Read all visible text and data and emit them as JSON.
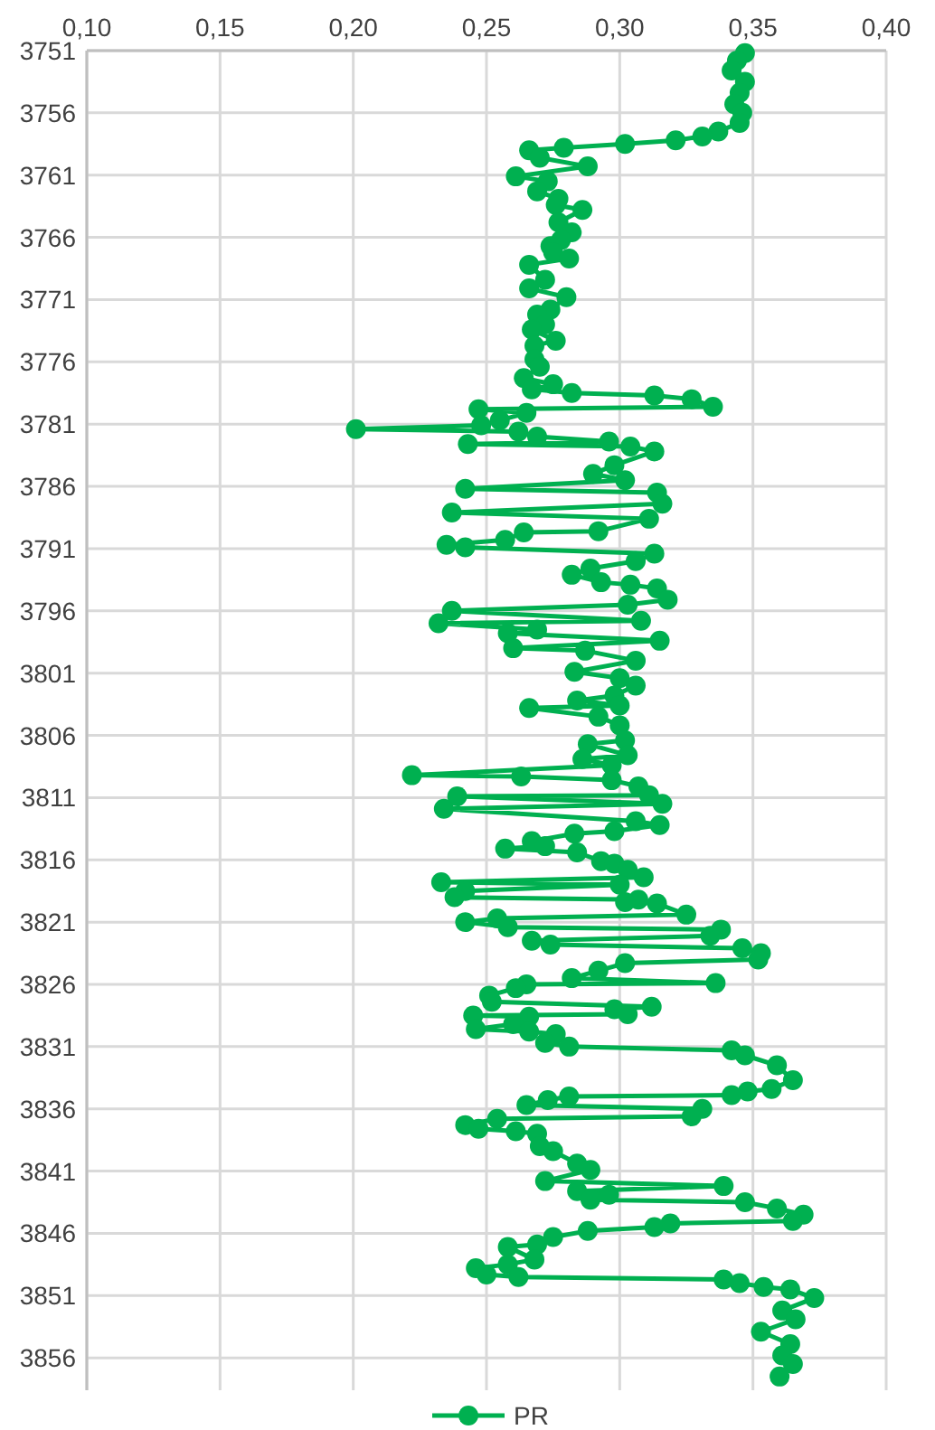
{
  "chart_data": {
    "type": "line",
    "xlim": [
      0.1,
      0.4
    ],
    "xticks": [
      {
        "value": 0.1,
        "label": "0,10"
      },
      {
        "value": 0.15,
        "label": "0,15"
      },
      {
        "value": 0.2,
        "label": "0,20"
      },
      {
        "value": 0.25,
        "label": "0,25"
      },
      {
        "value": 0.3,
        "label": "0,30"
      },
      {
        "value": 0.35,
        "label": "0,35"
      },
      {
        "value": 0.4,
        "label": "0,40"
      }
    ],
    "ylim": [
      3858.6,
      3751
    ],
    "yticks": [
      3751,
      3756,
      3761,
      3766,
      3771,
      3776,
      3781,
      3786,
      3791,
      3796,
      3801,
      3806,
      3811,
      3816,
      3821,
      3826,
      3831,
      3836,
      3841,
      3846,
      3851,
      3856
    ],
    "grid": true,
    "legend": "bottom",
    "marker": "circle",
    "line_style": "solid",
    "series": [
      {
        "name": "PR",
        "color": "#00b050",
        "x": [
          0.347,
          0.344,
          0.342,
          0.347,
          0.345,
          0.343,
          0.346,
          0.345,
          0.337,
          0.331,
          0.321,
          0.302,
          0.279,
          0.266,
          0.27,
          0.288,
          0.261,
          0.273,
          0.269,
          0.277,
          0.276,
          0.286,
          0.277,
          0.282,
          0.278,
          0.274,
          0.275,
          0.281,
          0.266,
          0.272,
          0.266,
          0.28,
          0.274,
          0.269,
          0.272,
          0.267,
          0.276,
          0.268,
          0.268,
          0.27,
          0.264,
          0.275,
          0.267,
          0.282,
          0.313,
          0.327,
          0.335,
          0.247,
          0.265,
          0.255,
          0.248,
          0.201,
          0.262,
          0.269,
          0.296,
          0.243,
          0.304,
          0.313,
          0.298,
          0.29,
          0.302,
          0.242,
          0.314,
          0.316,
          0.237,
          0.311,
          0.292,
          0.264,
          0.257,
          0.235,
          0.242,
          0.313,
          0.306,
          0.289,
          0.282,
          0.293,
          0.304,
          0.314,
          0.318,
          0.303,
          0.237,
          0.308,
          0.232,
          0.269,
          0.258,
          0.315,
          0.26,
          0.287,
          0.306,
          0.283,
          0.3,
          0.306,
          0.298,
          0.284,
          0.3,
          0.266,
          0.292,
          0.3,
          0.302,
          0.288,
          0.303,
          0.286,
          0.297,
          0.222,
          0.263,
          0.297,
          0.307,
          0.311,
          0.239,
          0.316,
          0.234,
          0.306,
          0.315,
          0.298,
          0.283,
          0.267,
          0.272,
          0.257,
          0.284,
          0.293,
          0.298,
          0.303,
          0.309,
          0.233,
          0.3,
          0.242,
          0.238,
          0.307,
          0.302,
          0.314,
          0.325,
          0.254,
          0.242,
          0.258,
          0.338,
          0.334,
          0.267,
          0.274,
          0.346,
          0.353,
          0.352,
          0.302,
          0.292,
          0.282,
          0.336,
          0.265,
          0.261,
          0.251,
          0.252,
          0.312,
          0.298,
          0.303,
          0.245,
          0.266,
          0.26,
          0.246,
          0.266,
          0.276,
          0.272,
          0.281,
          0.342,
          0.347,
          0.359,
          0.365,
          0.357,
          0.348,
          0.342,
          0.281,
          0.273,
          0.265,
          0.331,
          0.327,
          0.254,
          0.242,
          0.247,
          0.261,
          0.269,
          0.27,
          0.275,
          0.284,
          0.289,
          0.272,
          0.339,
          0.284,
          0.296,
          0.289,
          0.347,
          0.359,
          0.369,
          0.365,
          0.319,
          0.313,
          0.288,
          0.275,
          0.269,
          0.258,
          0.268,
          0.258,
          0.246,
          0.25,
          0.262,
          0.339,
          0.345,
          0.354,
          0.364,
          0.373,
          0.361,
          0.366,
          0.353,
          0.364,
          0.361,
          0.365,
          0.36
        ],
        "values": [
          3751.2,
          3751.8,
          3752.6,
          3753.5,
          3754.4,
          3755.3,
          3756.0,
          3756.8,
          3757.5,
          3757.9,
          3758.2,
          3758.5,
          3758.8,
          3759.0,
          3759.6,
          3760.3,
          3761.1,
          3761.5,
          3762.3,
          3762.9,
          3763.4,
          3763.8,
          3764.8,
          3765.6,
          3766.2,
          3766.7,
          3767.2,
          3767.7,
          3768.2,
          3769.4,
          3770.1,
          3770.8,
          3771.8,
          3772.2,
          3773.0,
          3773.4,
          3774.3,
          3774.7,
          3775.8,
          3776.4,
          3777.3,
          3777.8,
          3778.2,
          3778.5,
          3778.7,
          3779.0,
          3779.6,
          3779.8,
          3780.1,
          3780.7,
          3781.1,
          3781.4,
          3781.6,
          3782.0,
          3782.4,
          3782.6,
          3782.8,
          3783.2,
          3784.3,
          3785.0,
          3785.5,
          3786.2,
          3786.5,
          3787.4,
          3788.1,
          3788.6,
          3789.6,
          3789.7,
          3790.3,
          3790.7,
          3790.9,
          3791.4,
          3792.0,
          3792.6,
          3793.1,
          3793.7,
          3793.9,
          3794.2,
          3795.1,
          3795.5,
          3796.0,
          3796.8,
          3797.0,
          3797.5,
          3797.8,
          3798.4,
          3799.0,
          3799.2,
          3800.0,
          3800.9,
          3801.4,
          3802.0,
          3802.8,
          3803.2,
          3803.6,
          3803.8,
          3804.5,
          3805.2,
          3806.4,
          3806.7,
          3807.6,
          3807.9,
          3808.4,
          3809.2,
          3809.3,
          3809.6,
          3810.1,
          3810.8,
          3810.9,
          3811.5,
          3811.9,
          3812.9,
          3813.2,
          3813.7,
          3813.9,
          3814.5,
          3814.9,
          3815.1,
          3815.4,
          3816.1,
          3816.3,
          3816.8,
          3817.4,
          3817.8,
          3818.0,
          3818.5,
          3819.0,
          3819.2,
          3819.4,
          3819.5,
          3820.4,
          3820.7,
          3821.0,
          3821.4,
          3821.6,
          3822.1,
          3822.5,
          3822.8,
          3823.1,
          3823.5,
          3824.0,
          3824.3,
          3824.9,
          3825.5,
          3825.9,
          3826.0,
          3826.3,
          3826.9,
          3827.4,
          3827.8,
          3828.0,
          3828.4,
          3828.5,
          3828.6,
          3829.2,
          3829.6,
          3829.8,
          3830.0,
          3830.7,
          3831.0,
          3831.3,
          3831.7,
          3832.5,
          3833.7,
          3834.4,
          3834.6,
          3834.9,
          3835.0,
          3835.3,
          3835.7,
          3836.0,
          3836.6,
          3836.8,
          3837.3,
          3837.6,
          3837.8,
          3838.0,
          3839.0,
          3839.4,
          3840.4,
          3840.9,
          3841.8,
          3842.2,
          3842.6,
          3842.9,
          3843.3,
          3843.5,
          3844.0,
          3844.5,
          3845.0,
          3845.2,
          3845.5,
          3845.8,
          3846.3,
          3846.9,
          3847.1,
          3848.1,
          3848.5,
          3848.8,
          3849.3,
          3849.5,
          3849.7,
          3850.0,
          3850.3,
          3850.5,
          3851.2,
          3852.2,
          3852.9,
          3853.9,
          3854.9,
          3855.8,
          3856.5,
          3857.5
        ]
      }
    ]
  }
}
